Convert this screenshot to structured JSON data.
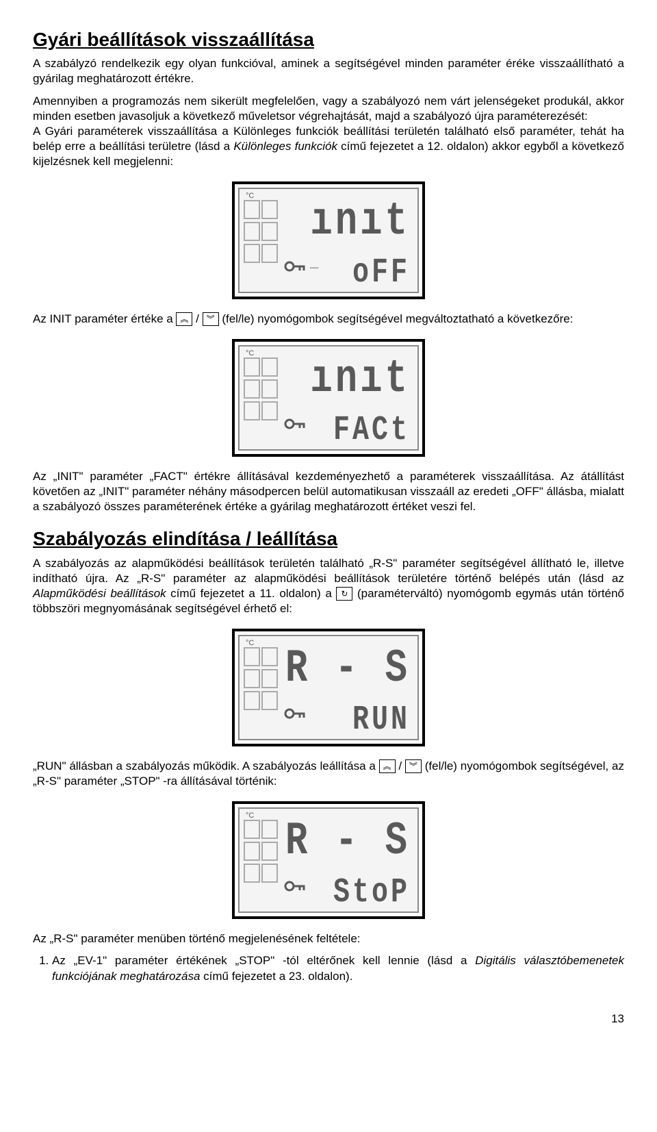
{
  "section1": {
    "title": "Gyári beállítások visszaállítása",
    "p1": "A szabályzó rendelkezik egy olyan funkcióval, aminek a segítségével minden paraméter éréke visszaállítható a gyárilag meghatározott értékre.",
    "p2_a": "Amennyiben a programozás nem sikerült megfelelően, vagy a szabályozó nem várt jelenségeket produkál, akkor minden esetben javasoljuk a következő műveletsor végrehajtását, majd a szabályozó újra paraméterezését:",
    "p2_b": "A Gyári paraméterek visszaállítása a Különleges funkciók beállítási területén található első paraméter, tehát ha belép erre a beállítási területre (lásd a ",
    "p2_c": "Különleges funkciók",
    "p2_d": " című fejezetet a 12. oldalon) akkor egyből a következő kijelzésnek kell megjelenni:",
    "p3_a": "Az INIT paraméter értéke a ",
    "p3_b": " (fel/le) nyomógombok segítségével megváltoztatható a következőre:",
    "p4": "Az „INIT\" paraméter „FACT\" értékre állításával kezdeményezhető a paraméterek visszaállítása. Az átállítást követően az „INIT\" paraméter néhány másodpercen belül automatikusan visszaáll az eredeti „OFF\" állásba, mialatt a szabályozó összes paraméterének értéke a gyárilag meghatározott értéket veszi fel."
  },
  "section2": {
    "title": "Szabályozás elindítása / leállítása",
    "p1_a": "A szabályozás az alapműködési beállítások területén található „R-S\" paraméter segítségével állítható le, illetve indítható újra. Az „R-S\" paraméter az alapműködési beállítások területére történő belépés után (lásd az ",
    "p1_b": "Alapműködési beállítások",
    "p1_c": " című fejezetet a 11. oldalon) a ",
    "p1_d": " (paraméterváltó) nyomógomb egymás után történő többszöri megnyomásának segítségével érhető el:",
    "p2_a": "„RUN\" állásban a szabályozás működik. A szabályozás leállítása a ",
    "p2_b": " (fel/le) nyomógombok segítségével, az „R-S\" paraméter „STOP\" -ra állításával történik:",
    "p3": "Az „R-S\" paraméter menüben történő megjelenésének feltétele:",
    "li1_a": "Az „EV-1\" paraméter értékének „STOP\" -tól eltérőnek kell lennie (lásd a ",
    "li1_b": "Digitális választóbemenetek funkciójának meghatározása",
    "li1_c": " című fejezetet a 23. oldalon)."
  },
  "lcd": {
    "d1": {
      "line1": "ınıt",
      "line2": "oFF",
      "keyIcon": true,
      "antenna": true
    },
    "d2": {
      "line1": "ınıt",
      "line2": "FACt",
      "keyIcon": true,
      "antenna": false
    },
    "d3": {
      "line1": "R - S",
      "line2": "RUN",
      "keyIcon": true,
      "antenna": false
    },
    "d4": {
      "line1": "R - S",
      "line2": "StoP",
      "keyIcon": true,
      "antenna": false
    }
  },
  "lcdStyle": {
    "outerW": 290,
    "outerH": 180,
    "outerStroke": "#000",
    "innerFill": "#f4f4f4",
    "innerStroke": "#888",
    "gridStroke": "#aaa",
    "textColor": "#595959",
    "line1Font": 54,
    "line2Font": 40
  },
  "icons": {
    "up": "︽",
    "down": "︾",
    "cycle": "↻"
  },
  "pageNumber": "13"
}
